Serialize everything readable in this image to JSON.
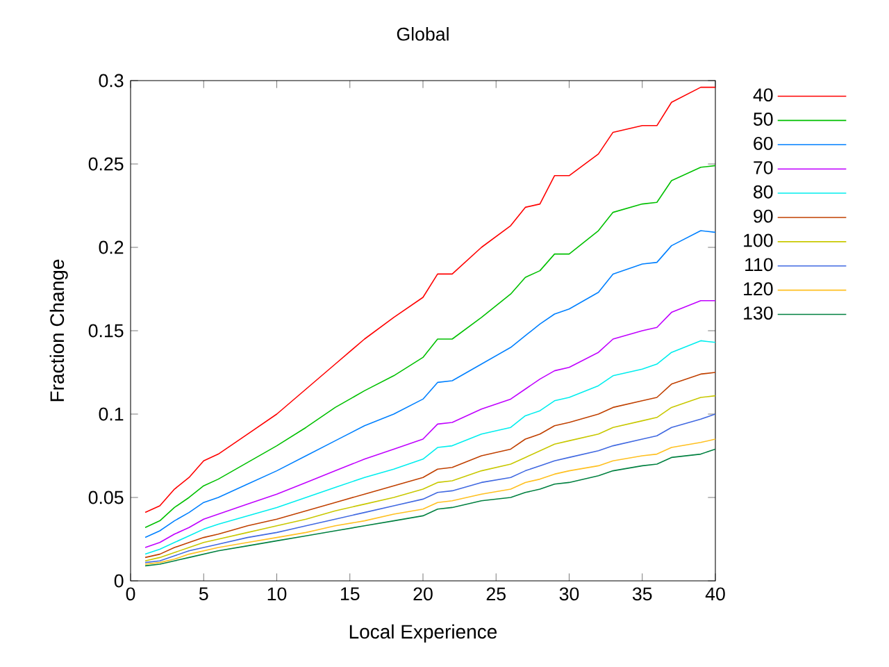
{
  "chart_data": {
    "type": "line",
    "title": "Global",
    "xlabel": "Local Experience",
    "ylabel": "Fraction Change",
    "x": [
      1,
      2,
      3,
      4,
      5,
      6,
      8,
      10,
      12,
      14,
      16,
      18,
      20,
      21,
      22,
      24,
      26,
      27,
      28,
      29,
      30,
      32,
      33,
      35,
      36,
      37,
      39,
      40
    ],
    "xlim": [
      0,
      40
    ],
    "xticks": [
      0,
      5,
      10,
      15,
      20,
      25,
      30,
      35,
      40
    ],
    "ylim": [
      0,
      0.3
    ],
    "yticks": [
      0,
      0.05,
      0.1,
      0.15,
      0.2,
      0.25,
      0.3
    ],
    "grid": false,
    "legend": "right",
    "marker": "none",
    "line_style": "solid",
    "series": [
      {
        "name": "40",
        "color": "#ff0000",
        "values": [
          0.041,
          0.045,
          0.055,
          0.062,
          0.072,
          0.076,
          0.088,
          0.1,
          0.115,
          0.13,
          0.145,
          0.158,
          0.17,
          0.184,
          0.184,
          0.2,
          0.213,
          0.224,
          0.226,
          0.243,
          0.243,
          0.256,
          0.269,
          0.273,
          0.273,
          0.287,
          0.296,
          0.296
        ]
      },
      {
        "name": "50",
        "color": "#00c000",
        "values": [
          0.032,
          0.036,
          0.044,
          0.05,
          0.057,
          0.061,
          0.071,
          0.081,
          0.092,
          0.104,
          0.114,
          0.123,
          0.134,
          0.145,
          0.145,
          0.158,
          0.172,
          0.182,
          0.186,
          0.196,
          0.196,
          0.21,
          0.221,
          0.226,
          0.227,
          0.24,
          0.248,
          0.249
        ]
      },
      {
        "name": "60",
        "color": "#0080ff",
        "values": [
          0.026,
          0.03,
          0.036,
          0.041,
          0.047,
          0.05,
          0.058,
          0.066,
          0.075,
          0.084,
          0.093,
          0.1,
          0.109,
          0.119,
          0.12,
          0.13,
          0.14,
          0.147,
          0.154,
          0.16,
          0.163,
          0.173,
          0.184,
          0.19,
          0.191,
          0.201,
          0.21,
          0.209
        ]
      },
      {
        "name": "70",
        "color": "#c000ff",
        "values": [
          0.02,
          0.023,
          0.028,
          0.032,
          0.037,
          0.04,
          0.046,
          0.052,
          0.059,
          0.066,
          0.073,
          0.079,
          0.085,
          0.094,
          0.095,
          0.103,
          0.109,
          0.115,
          0.121,
          0.126,
          0.128,
          0.137,
          0.145,
          0.15,
          0.152,
          0.161,
          0.168,
          0.168
        ]
      },
      {
        "name": "80",
        "color": "#00eeee",
        "values": [
          0.016,
          0.019,
          0.023,
          0.027,
          0.031,
          0.034,
          0.039,
          0.044,
          0.05,
          0.056,
          0.062,
          0.067,
          0.073,
          0.08,
          0.081,
          0.088,
          0.092,
          0.099,
          0.102,
          0.108,
          0.11,
          0.117,
          0.123,
          0.127,
          0.13,
          0.137,
          0.144,
          0.143
        ]
      },
      {
        "name": "90",
        "color": "#c04000",
        "values": [
          0.014,
          0.016,
          0.02,
          0.023,
          0.026,
          0.028,
          0.033,
          0.037,
          0.042,
          0.047,
          0.052,
          0.057,
          0.062,
          0.067,
          0.068,
          0.075,
          0.079,
          0.085,
          0.088,
          0.093,
          0.095,
          0.1,
          0.104,
          0.108,
          0.11,
          0.118,
          0.124,
          0.125
        ]
      },
      {
        "name": "100",
        "color": "#c8c800",
        "values": [
          0.012,
          0.014,
          0.017,
          0.02,
          0.023,
          0.025,
          0.029,
          0.033,
          0.037,
          0.042,
          0.046,
          0.05,
          0.055,
          0.059,
          0.06,
          0.066,
          0.07,
          0.074,
          0.078,
          0.082,
          0.084,
          0.088,
          0.092,
          0.096,
          0.098,
          0.104,
          0.11,
          0.111
        ]
      },
      {
        "name": "110",
        "color": "#4169e1",
        "values": [
          0.011,
          0.012,
          0.015,
          0.018,
          0.02,
          0.022,
          0.026,
          0.029,
          0.033,
          0.037,
          0.041,
          0.045,
          0.049,
          0.053,
          0.054,
          0.059,
          0.062,
          0.066,
          0.069,
          0.072,
          0.074,
          0.078,
          0.081,
          0.085,
          0.087,
          0.092,
          0.097,
          0.1
        ]
      },
      {
        "name": "120",
        "color": "#ffc020",
        "values": [
          0.01,
          0.011,
          0.013,
          0.016,
          0.018,
          0.02,
          0.023,
          0.026,
          0.029,
          0.033,
          0.036,
          0.04,
          0.043,
          0.047,
          0.048,
          0.052,
          0.055,
          0.059,
          0.061,
          0.064,
          0.066,
          0.069,
          0.072,
          0.075,
          0.076,
          0.08,
          0.083,
          0.085
        ]
      },
      {
        "name": "130",
        "color": "#008040",
        "values": [
          0.009,
          0.01,
          0.012,
          0.014,
          0.016,
          0.018,
          0.021,
          0.024,
          0.027,
          0.03,
          0.033,
          0.036,
          0.039,
          0.043,
          0.044,
          0.048,
          0.05,
          0.053,
          0.055,
          0.058,
          0.059,
          0.063,
          0.066,
          0.069,
          0.07,
          0.074,
          0.076,
          0.079
        ]
      }
    ]
  }
}
